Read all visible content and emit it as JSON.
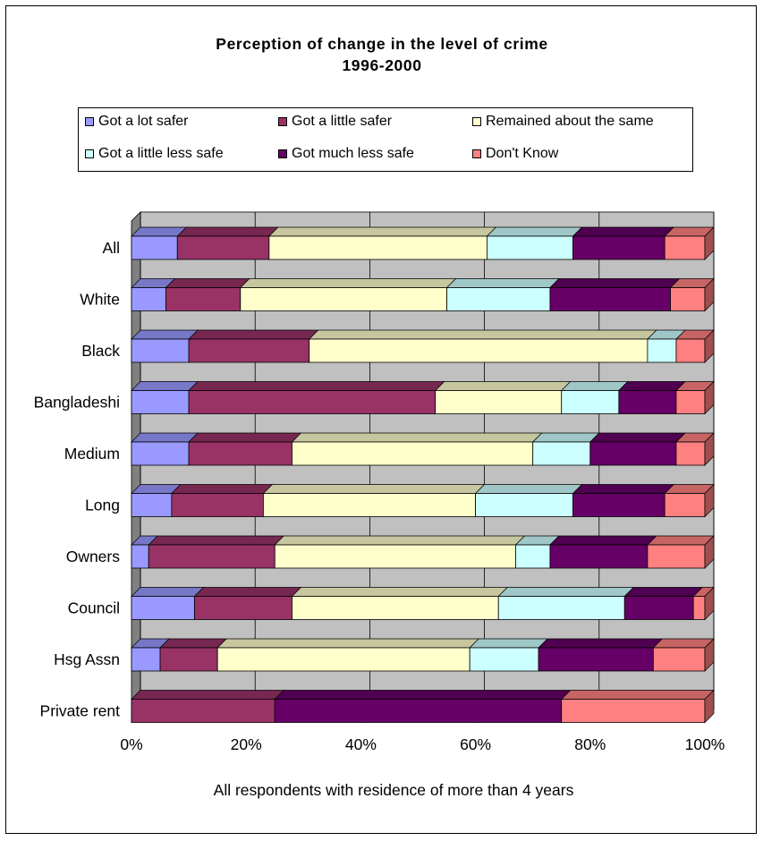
{
  "chart_data": {
    "type": "bar",
    "orientation": "horizontal",
    "stacked": "percent",
    "title": [
      "Perception of change in the level of crime",
      "1996-2000"
    ],
    "xlabel": "All respondents with residence of more than 4 years",
    "ylabel": "",
    "xlim": [
      0,
      100
    ],
    "x_ticks": [
      "0%",
      "20%",
      "40%",
      "60%",
      "80%",
      "100%"
    ],
    "grid": true,
    "legend_position": "top",
    "categories": [
      "All",
      "White",
      "Black",
      "Bangladeshi",
      "Medium",
      "Long",
      "Owners",
      "Council",
      "Hsg Assn",
      "Private rent"
    ],
    "series": [
      {
        "name": "Got a lot safer",
        "color": "#9999FF",
        "values": [
          8,
          6,
          10,
          10,
          10,
          7,
          3,
          11,
          5,
          0
        ]
      },
      {
        "name": "Got a little safer",
        "color": "#993366",
        "values": [
          16,
          13,
          21,
          43,
          18,
          16,
          22,
          17,
          10,
          25
        ]
      },
      {
        "name": "Remained about the same",
        "color": "#FFFFCC",
        "values": [
          38,
          36,
          59,
          22,
          42,
          37,
          42,
          36,
          44,
          0
        ]
      },
      {
        "name": "Got a little less safe",
        "color": "#CCFFFF",
        "values": [
          15,
          18,
          5,
          10,
          10,
          17,
          6,
          22,
          12,
          0
        ]
      },
      {
        "name": "Got much less safe",
        "color": "#660066",
        "values": [
          16,
          21,
          0,
          10,
          15,
          16,
          17,
          12,
          20,
          50
        ]
      },
      {
        "name": "Don't Know",
        "color": "#FF8080",
        "values": [
          7,
          6,
          5,
          5,
          5,
          7,
          10,
          2,
          9,
          25
        ]
      }
    ]
  }
}
